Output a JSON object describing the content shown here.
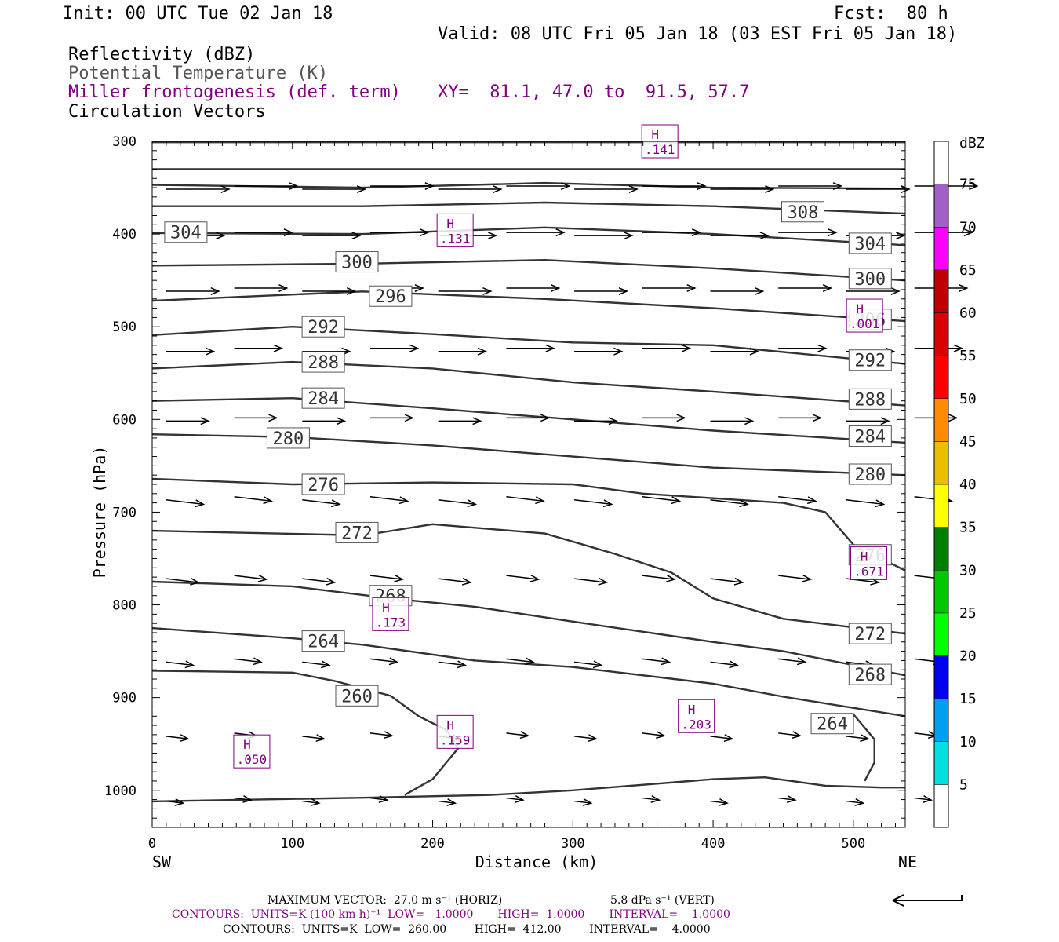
{
  "header": {
    "init": "Init: 00 UTC Tue 02 Jan 18",
    "fcst": "Fcst:  80 h",
    "valid": "Valid: 08 UTC Fri 05 Jan 18 (03 EST Fri 05 Jan 18)",
    "field1": "Reflectivity (dBZ)",
    "field2": "Potential Temperature (K)",
    "field3": "Miller frontogenesis (def. term)",
    "xy": "XY=  81.1, 47.0 to  91.5, 57.7",
    "field4": "Circulation Vectors"
  },
  "chart_data": {
    "type": "cross-section",
    "xlabel": "Distance (km)",
    "ylabel": "Pressure (hPa)",
    "xlim": [
      0,
      537
    ],
    "ylim": [
      1040,
      300
    ],
    "x_ticks": [
      0,
      100,
      200,
      300,
      400,
      500
    ],
    "y_ticks": [
      300,
      400,
      500,
      600,
      700,
      800,
      900,
      1000
    ],
    "left_end_label": "SW",
    "right_end_label": "NE",
    "theta_contours": [
      {
        "value": 308,
        "points": [
          [
            0,
            301
          ],
          [
            537,
            301
          ]
        ]
      },
      {
        "value": 308,
        "points": [
          [
            0,
            330
          ],
          [
            537,
            330
          ]
        ]
      },
      {
        "value": 308,
        "points": [
          [
            0,
            347
          ],
          [
            150,
            350
          ],
          [
            280,
            345
          ],
          [
            400,
            350
          ],
          [
            537,
            351
          ]
        ]
      },
      {
        "value": 308,
        "points": [
          [
            0,
            370
          ],
          [
            150,
            370
          ],
          [
            280,
            366
          ],
          [
            400,
            370
          ],
          [
            537,
            378
          ]
        ],
        "labels": [
          [
            464,
            376
          ]
        ]
      },
      {
        "value": 304,
        "points": [
          [
            0,
            399
          ],
          [
            150,
            400
          ],
          [
            280,
            393
          ],
          [
            400,
            400
          ],
          [
            537,
            412
          ]
        ],
        "labels": [
          [
            24,
            398
          ],
          [
            512,
            410
          ]
        ]
      },
      {
        "value": 300,
        "points": [
          [
            0,
            434
          ],
          [
            150,
            432
          ],
          [
            280,
            428
          ],
          [
            400,
            437
          ],
          [
            537,
            450
          ]
        ],
        "labels": [
          [
            146,
            430
          ],
          [
            512,
            448
          ]
        ]
      },
      {
        "value": 296,
        "points": [
          [
            0,
            472
          ],
          [
            150,
            462
          ],
          [
            280,
            470
          ],
          [
            400,
            480
          ],
          [
            537,
            494
          ]
        ],
        "labels": [
          [
            170,
            467
          ],
          [
            512,
            492
          ]
        ]
      },
      {
        "value": 292,
        "points": [
          [
            0,
            509
          ],
          [
            100,
            500
          ],
          [
            200,
            508
          ],
          [
            300,
            517
          ],
          [
            400,
            520
          ],
          [
            537,
            540
          ]
        ],
        "labels": [
          [
            122,
            500
          ],
          [
            512,
            536
          ]
        ]
      },
      {
        "value": 288,
        "points": [
          [
            0,
            545
          ],
          [
            100,
            538
          ],
          [
            200,
            545
          ],
          [
            300,
            560
          ],
          [
            400,
            570
          ],
          [
            537,
            585
          ]
        ],
        "labels": [
          [
            122,
            538
          ],
          [
            512,
            578
          ]
        ]
      },
      {
        "value": 284,
        "points": [
          [
            0,
            580
          ],
          [
            100,
            577
          ],
          [
            200,
            588
          ],
          [
            300,
            600
          ],
          [
            400,
            612
          ],
          [
            537,
            625
          ]
        ],
        "labels": [
          [
            122,
            577
          ],
          [
            512,
            618
          ]
        ]
      },
      {
        "value": 280,
        "points": [
          [
            0,
            616
          ],
          [
            100,
            619
          ],
          [
            200,
            628
          ],
          [
            300,
            640
          ],
          [
            400,
            652
          ],
          [
            537,
            660
          ]
        ],
        "labels": [
          [
            97,
            620
          ],
          [
            512,
            659
          ]
        ]
      },
      {
        "value": 276,
        "points": [
          [
            0,
            664
          ],
          [
            100,
            670
          ],
          [
            200,
            668
          ],
          [
            300,
            670
          ],
          [
            350,
            680
          ],
          [
            450,
            690
          ],
          [
            480,
            700
          ],
          [
            500,
            735
          ],
          [
            537,
            763
          ]
        ],
        "labels": [
          [
            122,
            670
          ],
          [
            512,
            746
          ]
        ]
      },
      {
        "value": 272,
        "points": [
          [
            0,
            720
          ],
          [
            150,
            725
          ],
          [
            200,
            713
          ],
          [
            280,
            723
          ],
          [
            330,
            745
          ],
          [
            370,
            765
          ],
          [
            400,
            793
          ],
          [
            450,
            815
          ],
          [
            537,
            831
          ]
        ],
        "labels": [
          [
            146,
            722
          ],
          [
            512,
            831
          ]
        ]
      },
      {
        "value": 268,
        "points": [
          [
            0,
            775
          ],
          [
            100,
            780
          ],
          [
            170,
            793
          ],
          [
            230,
            802
          ],
          [
            300,
            818
          ],
          [
            400,
            840
          ],
          [
            450,
            850
          ],
          [
            537,
            876
          ]
        ],
        "labels": [
          [
            170,
            790
          ],
          [
            512,
            875
          ]
        ]
      },
      {
        "value": 264,
        "points": [
          [
            0,
            825
          ],
          [
            100,
            836
          ],
          [
            150,
            843
          ],
          [
            230,
            860
          ],
          [
            300,
            867
          ],
          [
            400,
            885
          ],
          [
            450,
            899
          ],
          [
            537,
            920
          ]
        ],
        "labels": [
          [
            122,
            839
          ],
          [
            485,
            928
          ]
        ]
      },
      {
        "value": 260,
        "points": [
          [
            0,
            871
          ],
          [
            100,
            873
          ],
          [
            130,
            882
          ],
          [
            170,
            898
          ],
          [
            190,
            920
          ],
          [
            210,
            935
          ],
          [
            218,
            955
          ],
          [
            200,
            988
          ],
          [
            180,
            1005
          ]
        ],
        "labels": [
          [
            146,
            898
          ]
        ]
      },
      {
        "value": 264,
        "points": [
          [
            500,
            918
          ],
          [
            515,
            945
          ],
          [
            515,
            970
          ],
          [
            508,
            990
          ]
        ]
      },
      {
        "value": 260,
        "points": [
          [
            0,
            1012
          ],
          [
            150,
            1008
          ],
          [
            240,
            1005
          ],
          [
            300,
            1000
          ],
          [
            400,
            988
          ],
          [
            437,
            986
          ],
          [
            480,
            995
          ],
          [
            520,
            997
          ],
          [
            537,
            997
          ]
        ]
      }
    ],
    "frontogenesis_maxima": [
      {
        "label": "H",
        "value": ".141",
        "at": [
          362,
          300
        ]
      },
      {
        "label": "H",
        "value": ".131",
        "at": [
          216,
          396
        ]
      },
      {
        "label": "H",
        "value": ".001",
        "at": [
          508,
          488
        ]
      },
      {
        "label": "H",
        "value": ".173",
        "at": [
          170,
          810
        ]
      },
      {
        "label": "H",
        "value": ".671",
        "at": [
          511,
          755
        ]
      },
      {
        "label": "H",
        "value": ".159",
        "at": [
          216,
          937
        ]
      },
      {
        "label": "H",
        "value": ".203",
        "at": [
          388,
          920
        ]
      },
      {
        "label": "H",
        "value": ".050",
        "at": [
          71,
          958
        ]
      }
    ],
    "vector_rows_hpa": [
      350,
      400,
      460,
      525,
      600,
      685,
      770,
      860,
      940,
      1010
    ],
    "colorbar": {
      "unit": "dBZ",
      "levels": [
        "5",
        "10",
        "15",
        "20",
        "25",
        "30",
        "35",
        "40",
        "45",
        "50",
        "55",
        "60",
        "65",
        "70",
        "75"
      ],
      "colors": [
        "#00e0e0",
        "#00a0f0",
        "#0000f0",
        "#00ff00",
        "#00c800",
        "#008000",
        "#ffff00",
        "#e8c000",
        "#ff8c00",
        "#ff0000",
        "#d80000",
        "#c00000",
        "#ff00ff",
        "#a060c8",
        "#ffffff"
      ]
    }
  },
  "footer": {
    "max_vector": "MAXIMUM VECTOR:  27.0 m s⁻¹ (HORIZ)",
    "max_vert": "5.8 dPa s⁻¹ (VERT)",
    "contours1": "CONTOURS:  UNITS=K (100 km h)⁻¹  LOW=   1.0000       HIGH=  1.0000       INTERVAL=    1.0000",
    "contours2": "CONTOURS:  UNITS=K  LOW=  260.00        HIGH=  412.00        INTERVAL=    4.0000"
  }
}
